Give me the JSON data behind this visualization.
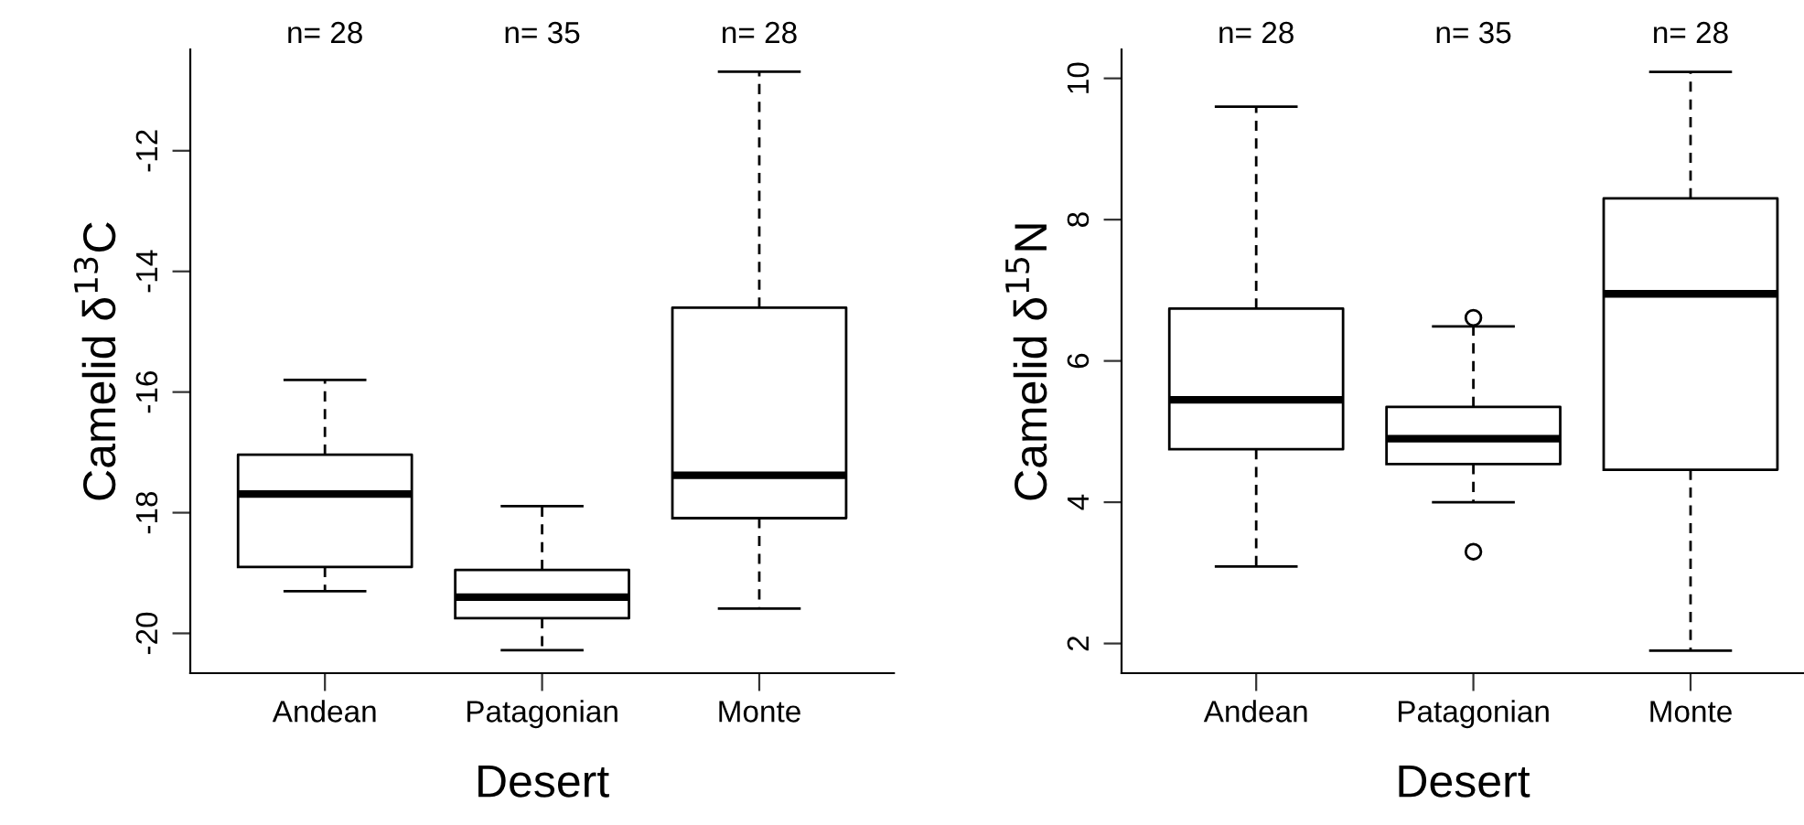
{
  "chart_data": [
    {
      "type": "box",
      "categories": [
        "Andean",
        "Patagonian",
        "Monte"
      ],
      "xlabel": "Desert",
      "ylabel": "Camelid δ$^{13}$C",
      "ylim": [
        -20.66,
        -10.32
      ],
      "yticks": [
        -20,
        -18,
        -16,
        -14,
        -12
      ],
      "grid": false,
      "annotations": [
        "n= 28",
        "n= 35",
        "n= 28"
      ],
      "boxes": [
        {
          "low": -19.3,
          "q1": -18.9,
          "median": -17.69,
          "q3": -17.04,
          "high": -15.8
        },
        {
          "low": -20.28,
          "q1": -19.75,
          "median": -19.4,
          "q3": -18.95,
          "high": -17.89
        },
        {
          "low": -19.59,
          "q1": -18.09,
          "median": -17.38,
          "q3": -14.6,
          "high": -10.69
        }
      ]
    },
    {
      "type": "box",
      "categories": [
        "Andean",
        "Patagonian",
        "Monte"
      ],
      "xlabel": "Desert",
      "ylabel": "Camelid δ$^{15}$N",
      "ylim": [
        1.58,
        10.41
      ],
      "yticks": [
        2,
        4,
        6,
        8,
        10
      ],
      "grid": false,
      "annotations": [
        "n= 28",
        "n= 35",
        "n= 28"
      ],
      "boxes": [
        {
          "low": 3.09,
          "q1": 4.75,
          "median": 5.45,
          "q3": 6.74,
          "high": 9.6
        },
        {
          "low": 4.0,
          "q1": 4.54,
          "median": 4.9,
          "q3": 5.35,
          "high": 6.49,
          "outliers": [
            6.61,
            3.3
          ]
        },
        {
          "low": 1.9,
          "q1": 4.46,
          "median": 6.95,
          "q3": 8.3,
          "high": 10.09
        }
      ]
    }
  ]
}
